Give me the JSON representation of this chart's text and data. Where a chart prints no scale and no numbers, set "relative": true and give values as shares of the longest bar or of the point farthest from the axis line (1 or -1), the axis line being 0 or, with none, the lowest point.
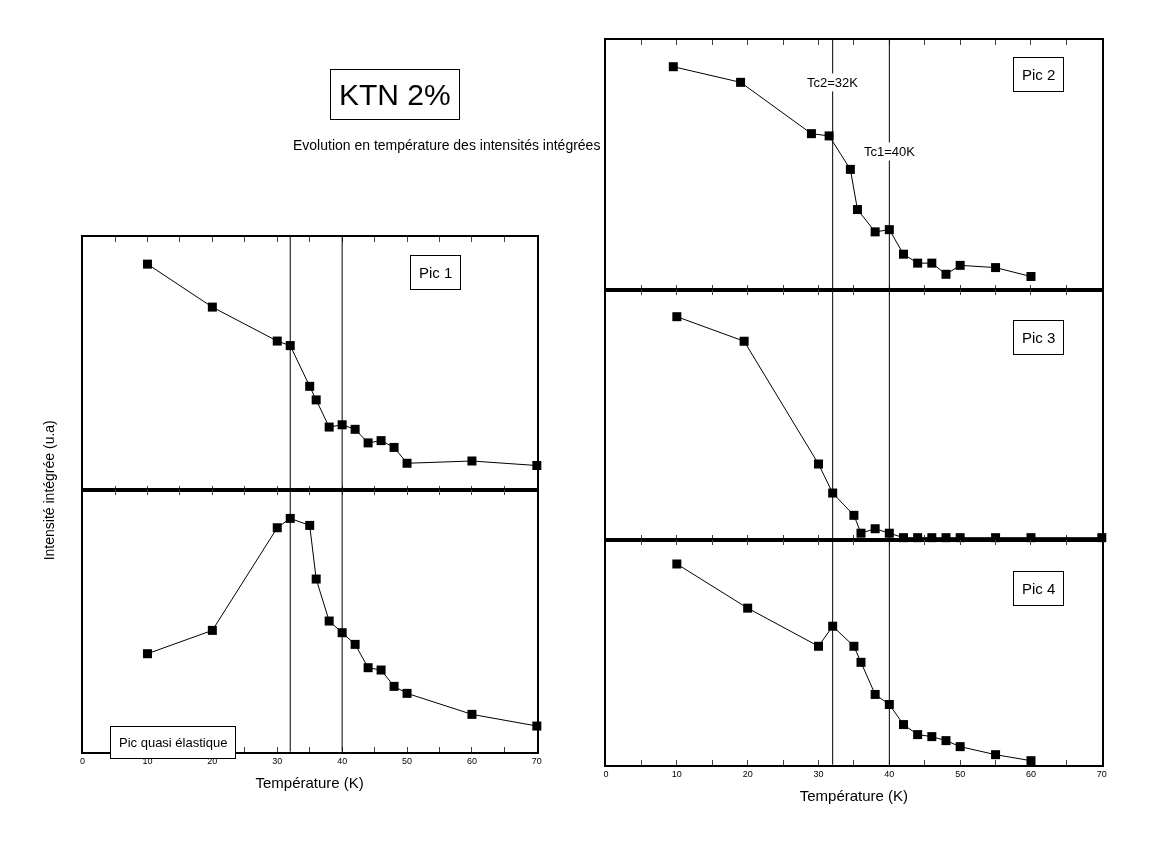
{
  "chart_data": [
    {
      "type": "line",
      "title": "KTN 2%",
      "subtitle": "Evolution en température des intensités intégrées",
      "ylabel": "Intensité intégrée (u.a)",
      "relative": true,
      "marker": "square",
      "line_style": "solid",
      "tick_labels": false,
      "x": [
        10,
        20,
        30,
        32,
        35,
        36,
        38,
        40,
        42,
        44,
        46,
        48,
        50,
        60,
        70
      ],
      "series": [
        {
          "color": "#000000",
          "values": [
            1.0,
            0.81,
            0.66,
            0.64,
            0.46,
            0.4,
            0.28,
            0.29,
            0.27,
            0.21,
            0.22,
            0.19,
            0.12,
            0.13,
            0.11
          ]
        }
      ],
      "xlim": [
        0,
        70
      ],
      "xticks": [
        0,
        {
          "value": 5,
          "label": null
        },
        10,
        {
          "value": 15,
          "label": null
        },
        20,
        {
          "value": 25,
          "label": null
        },
        30,
        {
          "value": 35,
          "label": null
        },
        40,
        {
          "value": 45,
          "label": null
        },
        50,
        {
          "value": 55,
          "label": null
        },
        60,
        {
          "value": 65,
          "label": null
        },
        70
      ],
      "ref_lines": [
        {
          "axis": "x",
          "value": 32,
          "color": "#000000"
        },
        {
          "axis": "x",
          "value": 40,
          "color": "#000000"
        }
      ],
      "annotations": [
        "Pic 1"
      ]
    },
    {
      "type": "line",
      "xlabel": "Température (K)",
      "relative": true,
      "marker": "square",
      "line_style": "solid",
      "tick_labels": "x",
      "x": [
        10,
        20,
        30,
        32,
        35,
        36,
        38,
        40,
        42,
        44,
        46,
        48,
        50,
        60,
        70
      ],
      "series": [
        {
          "color": "#000000",
          "values": [
            0.42,
            0.52,
            0.96,
            1.0,
            0.97,
            0.74,
            0.56,
            0.51,
            0.46,
            0.36,
            0.35,
            0.28,
            0.25,
            0.16,
            0.11
          ]
        }
      ],
      "xlim": [
        0,
        70
      ],
      "xticks": [
        0,
        {
          "value": 5,
          "label": null
        },
        10,
        {
          "value": 15,
          "label": null
        },
        20,
        {
          "value": 25,
          "label": null
        },
        30,
        {
          "value": 35,
          "label": null
        },
        40,
        {
          "value": 45,
          "label": null
        },
        50,
        {
          "value": 55,
          "label": null
        },
        60,
        {
          "value": 65,
          "label": null
        },
        70
      ],
      "ref_lines": [
        {
          "axis": "x",
          "value": 32,
          "color": "#000000"
        },
        {
          "axis": "x",
          "value": 40,
          "color": "#000000"
        }
      ],
      "annotations": [
        "Pic quasi élastique"
      ]
    },
    {
      "type": "line",
      "relative": true,
      "marker": "square",
      "line_style": "solid",
      "tick_labels": false,
      "x": [
        9.5,
        19,
        29,
        31.5,
        34.5,
        35.5,
        38,
        40,
        42,
        44,
        46,
        48,
        50,
        55,
        60
      ],
      "series": [
        {
          "color": "#000000",
          "values": [
            1.0,
            0.93,
            0.7,
            0.69,
            0.54,
            0.36,
            0.26,
            0.27,
            0.16,
            0.12,
            0.12,
            0.07,
            0.11,
            0.1,
            0.06
          ]
        }
      ],
      "xlim": [
        0,
        70
      ],
      "xticks": [
        0,
        {
          "value": 5,
          "label": null
        },
        10,
        {
          "value": 15,
          "label": null
        },
        20,
        {
          "value": 25,
          "label": null
        },
        30,
        {
          "value": 35,
          "label": null
        },
        40,
        {
          "value": 45,
          "label": null
        },
        50,
        {
          "value": 55,
          "label": null
        },
        60,
        {
          "value": 65,
          "label": null
        },
        70
      ],
      "ref_lines": [
        {
          "axis": "x",
          "value": 32,
          "color": "#000000"
        },
        {
          "axis": "x",
          "value": 40,
          "color": "#000000"
        }
      ],
      "annotations": [
        "Pic 2",
        {
          "text": "Tc2=32K",
          "x": 32,
          "y": 0.93
        },
        {
          "text": "Tc1=40K",
          "x": 40,
          "y": 0.62
        }
      ]
    },
    {
      "type": "line",
      "relative": true,
      "marker": "square",
      "line_style": "solid",
      "tick_labels": false,
      "x": [
        10,
        19.5,
        30,
        32,
        35,
        36,
        38,
        40,
        42,
        44,
        46,
        48,
        50,
        55,
        60,
        70
      ],
      "series": [
        {
          "color": "#000000",
          "values": [
            1.0,
            0.89,
            0.34,
            0.21,
            0.11,
            0.03,
            0.05,
            0.03,
            0.01,
            0.01,
            0.01,
            0.01,
            0.01,
            0.01,
            0.01,
            0.01
          ]
        }
      ],
      "xlim": [
        0,
        70
      ],
      "xticks": [
        0,
        {
          "value": 5,
          "label": null
        },
        10,
        {
          "value": 15,
          "label": null
        },
        20,
        {
          "value": 25,
          "label": null
        },
        30,
        {
          "value": 35,
          "label": null
        },
        40,
        {
          "value": 45,
          "label": null
        },
        50,
        {
          "value": 55,
          "label": null
        },
        60,
        {
          "value": 65,
          "label": null
        },
        70
      ],
      "ref_lines": [
        {
          "axis": "x",
          "value": 32,
          "color": "#000000"
        },
        {
          "axis": "x",
          "value": 40,
          "color": "#000000"
        }
      ],
      "annotations": [
        "Pic 3"
      ]
    },
    {
      "type": "line",
      "xlabel": "Température (K)",
      "relative": true,
      "marker": "square",
      "line_style": "solid",
      "tick_labels": "x",
      "x": [
        10,
        20,
        30,
        32,
        35,
        36,
        38,
        40,
        42,
        44,
        46,
        48,
        50,
        55,
        60
      ],
      "series": [
        {
          "color": "#000000",
          "values": [
            1.0,
            0.78,
            0.59,
            0.69,
            0.59,
            0.51,
            0.35,
            0.3,
            0.2,
            0.15,
            0.14,
            0.12,
            0.09,
            0.05,
            0.02
          ]
        }
      ],
      "xlim": [
        0,
        70
      ],
      "xticks": [
        0,
        {
          "value": 5,
          "label": null
        },
        10,
        {
          "value": 15,
          "label": null
        },
        20,
        {
          "value": 25,
          "label": null
        },
        30,
        {
          "value": 35,
          "label": null
        },
        40,
        {
          "value": 45,
          "label": null
        },
        50,
        {
          "value": 55,
          "label": null
        },
        60,
        {
          "value": 65,
          "label": null
        },
        70
      ],
      "ref_lines": [
        {
          "axis": "x",
          "value": 32,
          "color": "#000000"
        },
        {
          "axis": "x",
          "value": 40,
          "color": "#000000"
        }
      ],
      "annotations": [
        "Pic 4"
      ]
    }
  ]
}
